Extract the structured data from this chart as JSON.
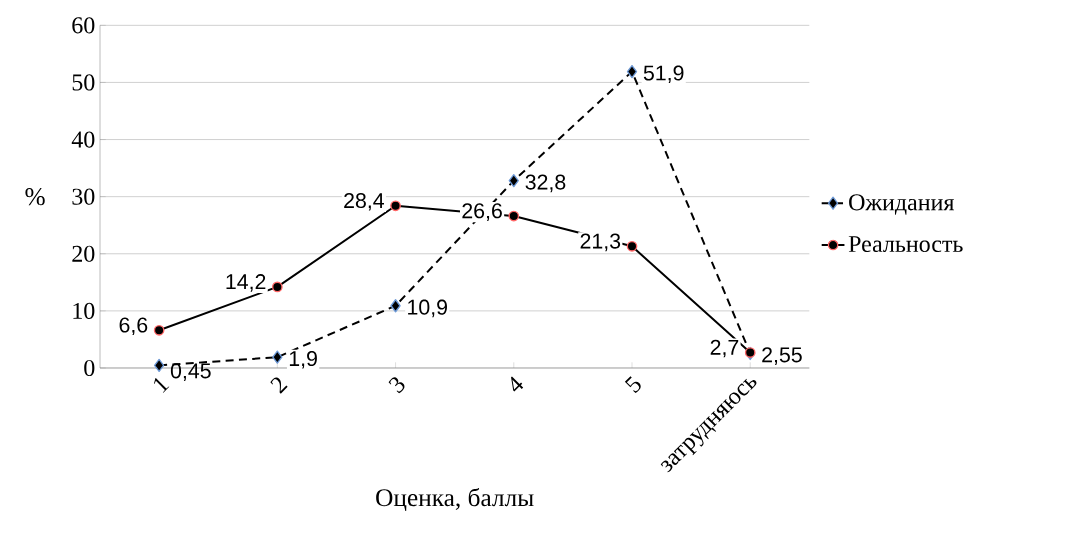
{
  "chart_data": {
    "type": "line",
    "xlabel": "Оценка, баллы",
    "ylabel": "%",
    "categories": [
      "1",
      "2",
      "3",
      "4",
      "5",
      "затрудняюсь"
    ],
    "series": [
      {
        "name": "Ожидания",
        "color": "#000000",
        "line_style": "dashed",
        "marker": "diamond",
        "values": [
          0.45,
          1.9,
          10.9,
          32.8,
          51.9,
          2.55
        ],
        "value_labels": [
          "0,45",
          "1,9",
          "10,9",
          "32,8",
          "51,9",
          "2,55"
        ]
      },
      {
        "name": "Реальность",
        "color": "#000000",
        "line_style": "solid",
        "marker": "circle",
        "values": [
          6.6,
          14.2,
          28.4,
          26.6,
          21.3,
          2.7
        ],
        "value_labels": [
          "6,6",
          "14,2",
          "28,4",
          "26,6",
          "21,3",
          "2,7"
        ]
      }
    ],
    "ylim": [
      0,
      60
    ],
    "yticks": [
      0,
      10,
      20,
      30,
      40,
      50,
      60
    ],
    "grid": "y",
    "legend": "right"
  }
}
